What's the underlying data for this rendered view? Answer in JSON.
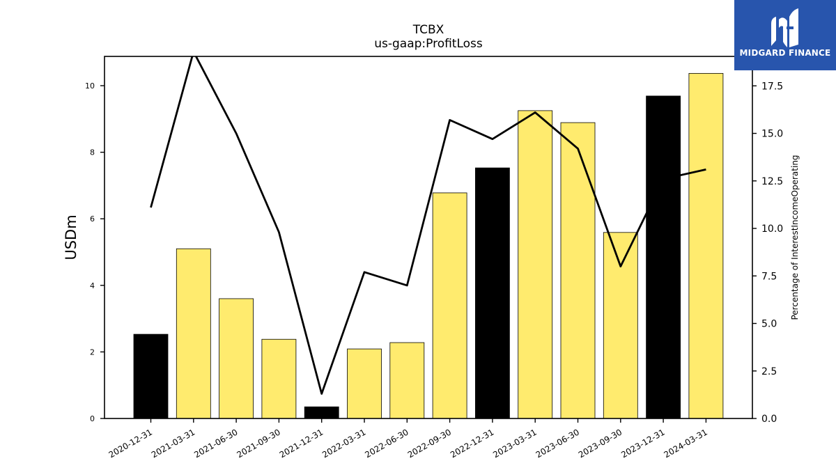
{
  "chart_data": {
    "type": "bar",
    "title": "TCBX",
    "subtitle": "us-gaap:ProfitLoss",
    "ylabel": "USDm",
    "y2label": "Percentage of InterestIncomeOperating",
    "categories": [
      "2020-12-31",
      "2021-03-31",
      "2021-06-30",
      "2021-09-30",
      "2021-12-31",
      "2022-03-31",
      "2022-06-30",
      "2022-09-30",
      "2022-12-31",
      "2023-03-31",
      "2023-06-30",
      "2023-09-30",
      "2023-12-31",
      "2024-03-31"
    ],
    "series": [
      {
        "type": "bar",
        "axis": "left",
        "values": [
          2.53,
          5.1,
          3.6,
          2.38,
          0.35,
          2.09,
          2.28,
          6.78,
          7.53,
          9.25,
          8.89,
          5.59,
          9.69,
          10.37
        ],
        "colors": [
          "#000000",
          "#ffeb6e",
          "#ffeb6e",
          "#ffeb6e",
          "#000000",
          "#ffeb6e",
          "#ffeb6e",
          "#ffeb6e",
          "#000000",
          "#ffeb6e",
          "#ffeb6e",
          "#ffeb6e",
          "#000000",
          "#ffeb6e"
        ]
      },
      {
        "type": "line",
        "axis": "right",
        "color": "#000000",
        "values": [
          11.1,
          19.3,
          15.0,
          9.8,
          1.3,
          7.7,
          7.0,
          15.7,
          14.7,
          16.1,
          14.2,
          8.0,
          12.6,
          13.1
        ]
      }
    ],
    "yticks": [
      0,
      2,
      4,
      6,
      8,
      10
    ],
    "y2ticks": [
      "0.0",
      "2.5",
      "5.0",
      "7.5",
      "10.0",
      "12.5",
      "15.0",
      "17.5"
    ],
    "ylim": [
      0,
      10.88
    ],
    "y2lim": [
      0,
      19.05
    ],
    "grid": false,
    "legend": "none"
  },
  "logo": {
    "text": "MIDGARD FINANCE",
    "background": "#2855ad"
  }
}
